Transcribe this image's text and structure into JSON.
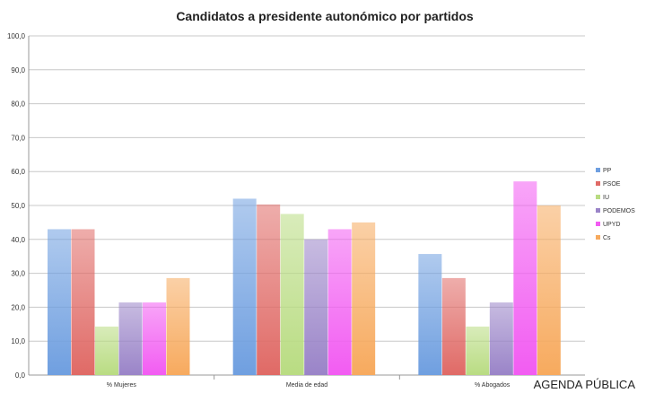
{
  "chart_data": {
    "type": "bar",
    "title": "Candidatos a presidente autonómico por partidos",
    "xlabel": "",
    "ylabel": "",
    "ylim": [
      0,
      100
    ],
    "yticks": [
      "0,0",
      "10,0",
      "20,0",
      "30,0",
      "40,0",
      "50,0",
      "60,0",
      "70,0",
      "80,0",
      "90,0",
      "100,0"
    ],
    "categories": [
      "% Mujeres",
      "Media de edad",
      "% Abogados"
    ],
    "series": [
      {
        "name": "PP",
        "color": "#6f9fe0",
        "values": [
          43,
          52,
          35.7
        ]
      },
      {
        "name": "PSOE",
        "color": "#e06a66",
        "values": [
          43,
          50.3,
          28.6
        ]
      },
      {
        "name": "IU",
        "color": "#b9dc82",
        "values": [
          14.3,
          47.5,
          14.3
        ]
      },
      {
        "name": "PODEMOS",
        "color": "#9a84c8",
        "values": [
          21.4,
          40,
          21.4
        ]
      },
      {
        "name": "UPYD",
        "color": "#f25cf2",
        "values": [
          21.4,
          43,
          57.1
        ]
      },
      {
        "name": "Cs",
        "color": "#f7aa5e",
        "values": [
          28.6,
          45,
          50
        ]
      }
    ],
    "legend_position": "right",
    "grid": true
  },
  "watermark": {
    "text": "AGENDA PÚBLICA"
  }
}
